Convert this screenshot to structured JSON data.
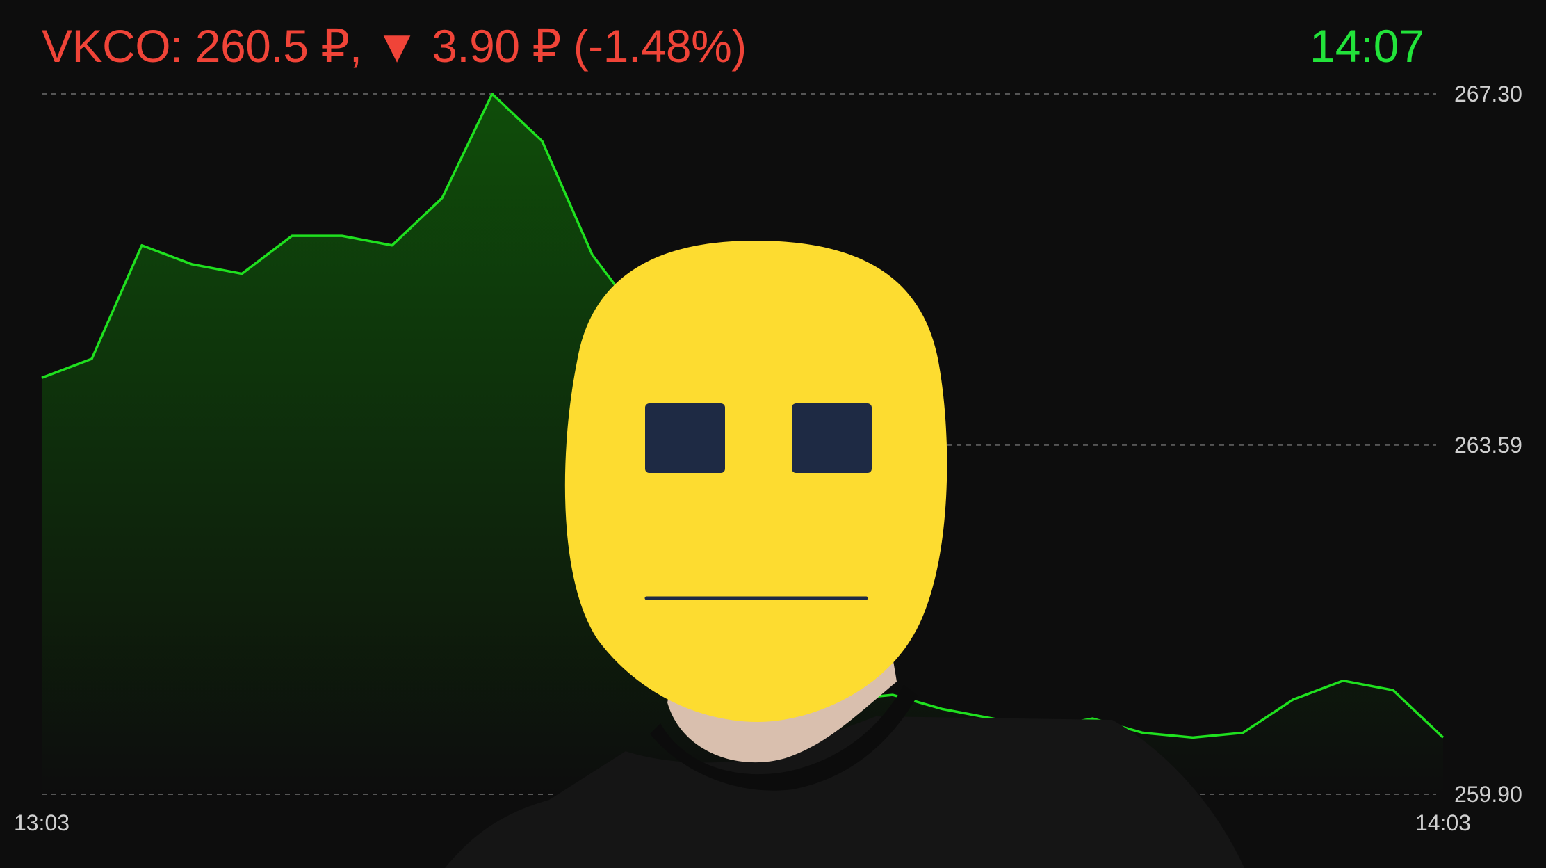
{
  "header": {
    "symbol": "VKCO:",
    "price": "260.5 ₽,",
    "arrow": "▼",
    "change": "3.90 ₽ (-1.48%)",
    "time": "14:07"
  },
  "colors": {
    "negative": "#f04438",
    "positive": "#22e33a",
    "line": "#1fe01f",
    "fill_top": "#0f4d0a",
    "background": "#0d0d0d",
    "grid": "#555555",
    "face": "#fddc30",
    "eyes": "#1e2a44"
  },
  "overlay": {
    "icon": "neutral-face-icon"
  },
  "chart_data": {
    "type": "area",
    "x_ticks": [
      "13:03",
      "14:03"
    ],
    "y_ticks": [
      "267.30",
      "263.59",
      "259.90"
    ],
    "ylim": [
      259.9,
      267.3
    ],
    "grid": true,
    "values": [
      264.3,
      264.5,
      265.7,
      265.5,
      265.4,
      265.8,
      265.8,
      265.7,
      266.2,
      267.3,
      266.8,
      265.6,
      264.9,
      263.8,
      262.6,
      261.2,
      260.9,
      260.95,
      260.8,
      260.7,
      260.6,
      260.7,
      260.55,
      260.5,
      260.55,
      260.9,
      261.1,
      261.0,
      260.5
    ]
  }
}
